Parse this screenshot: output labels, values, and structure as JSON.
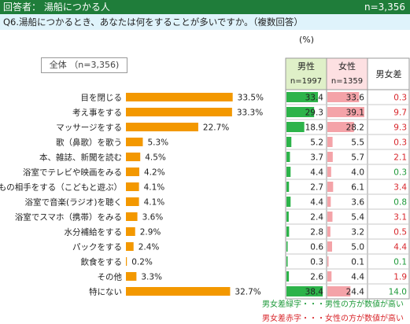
{
  "header": {
    "left": "回答者： 湯船につかる人",
    "right": "n=3,356"
  },
  "question": "Q6.湯船につかるとき、あなたは何をすることが多いですか。（複数回答）",
  "unit_label": "(%)",
  "total_label": "全体 （n=3,356)",
  "table": {
    "male_header": "男性",
    "male_n": "n=1997",
    "female_header": "女性",
    "female_n": "n=1359",
    "diff_header": "男女差"
  },
  "notes": {
    "green": "男女差緑字・・・男性の方が数値が高い",
    "red": "男女差赤字・・・女性の方が数値が高い"
  },
  "colors": {
    "bar": "#f39800",
    "male": "#2db34a",
    "female": "#f4a3a8",
    "diff_green": "#1e9a3a",
    "diff_red": "#d8262b",
    "header": "#1f7d3a"
  },
  "chart_data": {
    "type": "bar",
    "orientation": "horizontal",
    "categories": [
      "目を閉じる",
      "考え事をする",
      "マッサージをする",
      "歌（鼻歌）を歌う",
      "本、雑誌、新聞を読む",
      "浴室でテレビや映画をみる",
      "こどもの相手をする（こどもと遊ぶ）",
      "浴室で音楽(ラジオ)を聴く",
      "浴室でスマホ（携帯）をみる",
      "水分補給をする",
      "パックをする",
      "飲食をする",
      "その他",
      "特にない"
    ],
    "values": [
      33.5,
      33.3,
      22.7,
      5.3,
      4.5,
      4.2,
      4.1,
      4.1,
      3.6,
      2.9,
      2.4,
      0.2,
      3.3,
      32.7
    ],
    "value_labels": [
      "33.5%",
      "33.3%",
      "22.7%",
      "5.3%",
      "4.5%",
      "4.2%",
      "4.1%",
      "4.1%",
      "3.6%",
      "2.9%",
      "2.4%",
      "0.2%",
      "3.3%",
      "32.7%"
    ],
    "xlim": [
      0,
      36
    ],
    "male": [
      33.4,
      29.3,
      18.9,
      5.2,
      3.7,
      4.4,
      2.7,
      4.4,
      2.4,
      2.8,
      0.6,
      0.3,
      2.6,
      38.4
    ],
    "female": [
      33.6,
      39.1,
      28.2,
      5.5,
      5.7,
      4.0,
      6.1,
      3.6,
      5.4,
      3.2,
      5.0,
      0.1,
      4.4,
      24.4
    ],
    "diff": [
      0.3,
      9.7,
      9.3,
      0.3,
      2.1,
      0.3,
      3.4,
      0.8,
      3.1,
      0.5,
      4.4,
      0.1,
      1.9,
      14.0
    ],
    "diff_sign": [
      "female",
      "female",
      "female",
      "female",
      "female",
      "male",
      "female",
      "male",
      "female",
      "female",
      "female",
      "male",
      "female",
      "male"
    ]
  }
}
